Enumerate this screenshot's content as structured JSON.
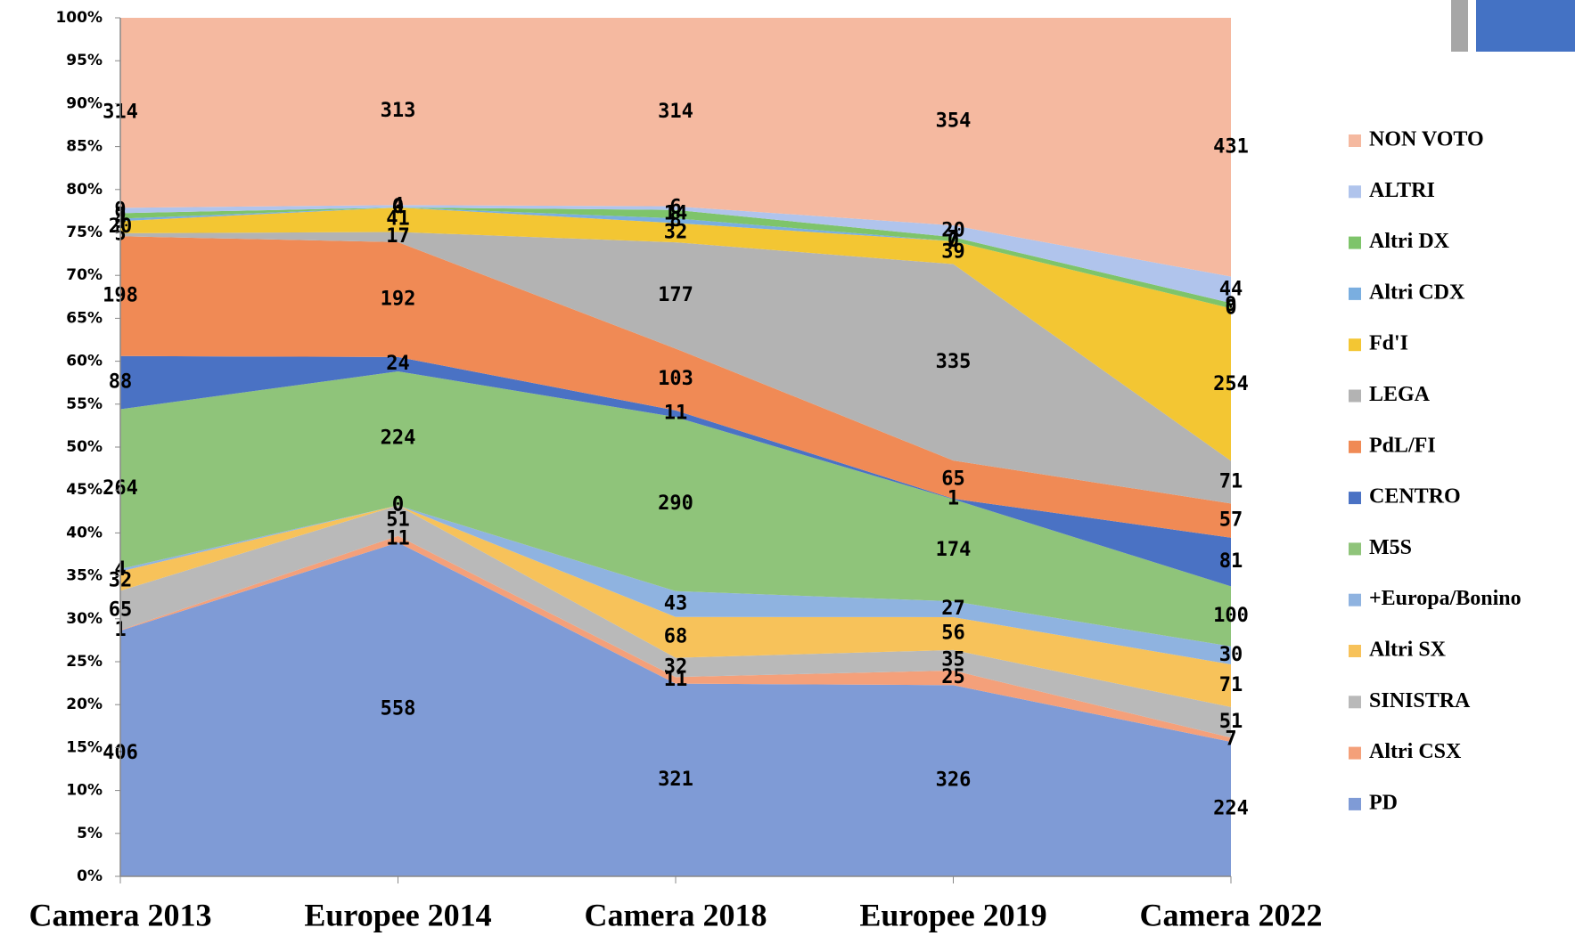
{
  "chart_data": {
    "type": "area",
    "stacking": "percent",
    "categories": [
      "Camera 2013",
      "Europee 2014",
      "Camera 2018",
      "Europee 2019",
      "Camera 2022"
    ],
    "ylim": [
      0,
      100
    ],
    "yticks": [
      {
        "value": 0,
        "label": "0%"
      },
      {
        "value": 5,
        "label": "5%"
      },
      {
        "value": 10,
        "label": "10%"
      },
      {
        "value": 15,
        "label": "15%"
      },
      {
        "value": 20,
        "label": "20%"
      },
      {
        "value": 25,
        "label": "25%"
      },
      {
        "value": 30,
        "label": "30%"
      },
      {
        "value": 35,
        "label": "35%"
      },
      {
        "value": 40,
        "label": "40%"
      },
      {
        "value": 45,
        "label": "45%"
      },
      {
        "value": 50,
        "label": "50%"
      },
      {
        "value": 55,
        "label": "55%"
      },
      {
        "value": 60,
        "label": "60%"
      },
      {
        "value": 65,
        "label": "65%"
      },
      {
        "value": 70,
        "label": "70%"
      },
      {
        "value": 75,
        "label": "75%"
      },
      {
        "value": 80,
        "label": "80%"
      },
      {
        "value": 85,
        "label": "85%"
      },
      {
        "value": 90,
        "label": "90%"
      },
      {
        "value": 95,
        "label": "95%"
      },
      {
        "value": 100,
        "label": "100%"
      }
    ],
    "legend": "right",
    "series": [
      {
        "name": "PD",
        "color": "#7f9bd6",
        "values": [
          406,
          558,
          321,
          326,
          224
        ]
      },
      {
        "name": "Altri CSX",
        "color": "#f4a07a",
        "values": [
          1,
          11,
          11,
          25,
          7
        ]
      },
      {
        "name": "SINISTRA",
        "color": "#b9b9b9",
        "values": [
          65,
          51,
          32,
          35,
          51
        ]
      },
      {
        "name": "Altri SX",
        "color": "#f7c25a",
        "values": [
          32,
          0,
          68,
          56,
          71
        ]
      },
      {
        "name": "+Europa/Bonino",
        "color": "#8fb3e0",
        "values": [
          4,
          0,
          43,
          27,
          30
        ]
      },
      {
        "name": "M5S",
        "color": "#8fc47a",
        "values": [
          264,
          224,
          290,
          174,
          100
        ]
      },
      {
        "name": "CENTRO",
        "color": "#4a72c4",
        "values": [
          88,
          24,
          11,
          1,
          81
        ]
      },
      {
        "name": "PdL/FI",
        "color": "#f08a55",
        "values": [
          198,
          192,
          103,
          65,
          57
        ]
      },
      {
        "name": "LEGA",
        "color": "#b3b3b3",
        "values": [
          5,
          17,
          177,
          335,
          71
        ]
      },
      {
        "name": "Fd'I",
        "color": "#f3c633",
        "values": [
          20,
          41,
          32,
          39,
          254
        ]
      },
      {
        "name": "Altri CDX",
        "color": "#7aaee0",
        "values": [
          4,
          0,
          8,
          0,
          0
        ]
      },
      {
        "name": "Altri DX",
        "color": "#7ec46a",
        "values": [
          9,
          0,
          14,
          7,
          9
        ]
      },
      {
        "name": "ALTRI",
        "color": "#b0c4ec",
        "values": [
          9,
          4,
          6,
          20,
          44
        ]
      },
      {
        "name": "NON VOTO",
        "color": "#f5b9a0",
        "values": [
          314,
          313,
          314,
          354,
          431
        ]
      }
    ]
  }
}
